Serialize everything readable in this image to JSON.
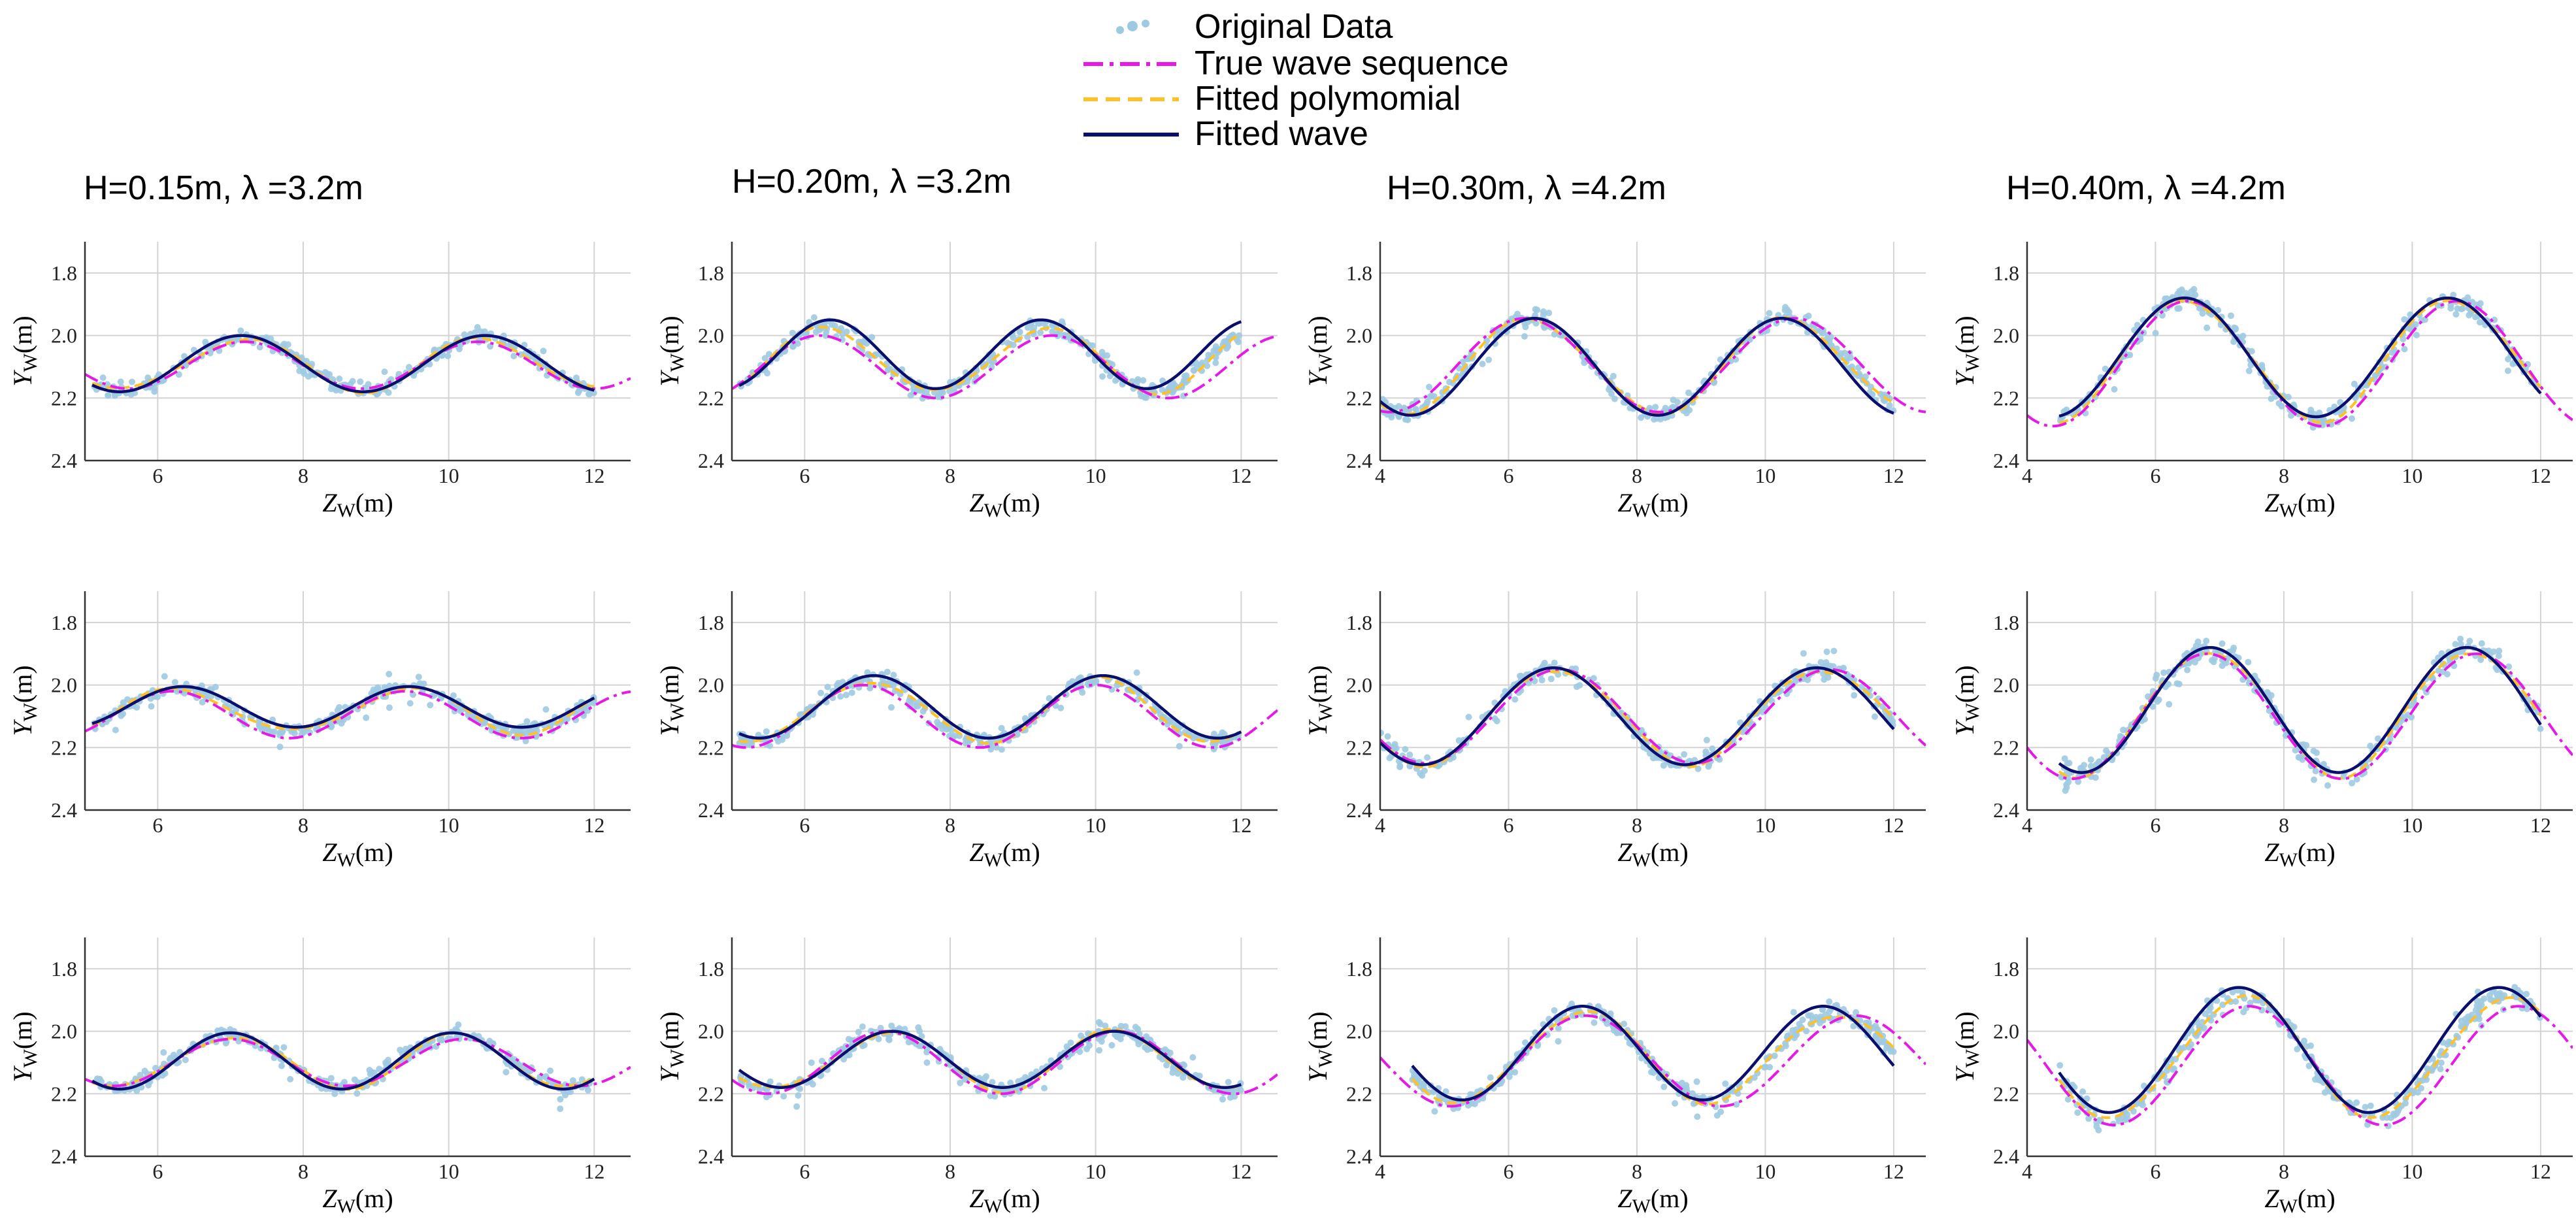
{
  "legend": {
    "entries": [
      {
        "label": "Original Data",
        "style": "scatter",
        "color": "#9ecae1"
      },
      {
        "label": "True wave sequence",
        "style": "dashdot",
        "color": "#e619e6"
      },
      {
        "label": "Fitted polymomial",
        "style": "dashed",
        "color": "#ffc125"
      },
      {
        "label": "Fitted wave",
        "style": "solid",
        "color": "#0a0f6e"
      }
    ]
  },
  "columns": [
    {
      "title": "H=0.15m, λ =3.2m"
    },
    {
      "title": "H=0.20m, λ =3.2m"
    },
    {
      "title": "H=0.30m, λ =4.2m"
    },
    {
      "title": "H=0.40m, λ =4.2m"
    }
  ],
  "axis_labels": {
    "x_main": "Z",
    "x_sub": "W",
    "x_unit": "(m)",
    "y_main": "Y",
    "y_sub": "W",
    "y_unit": "(m)"
  },
  "chart_data": {
    "type": "line",
    "layout": "3 rows x 4 columns grid",
    "grid": true,
    "y_inverted": true,
    "y_ticks": [
      "1.8",
      "2.0",
      "2.2",
      "2.4"
    ],
    "panels": [
      {
        "row": 0,
        "col": 0,
        "xlim": [
          5,
          12.5
        ],
        "ylim": [
          1.7,
          2.4
        ],
        "x_ticks": [
          "6",
          "8",
          "10",
          "12"
        ],
        "true_wave": {
          "mean": 2.095,
          "amp": 0.075,
          "wavelength": 3.2,
          "crest": 7.2,
          "xrange": [
            5,
            12.5
          ]
        },
        "fitted_wave": {
          "mean": 2.09,
          "amp": 0.09,
          "wavelength": 3.35,
          "crest": 7.15,
          "xrange": [
            5.1,
            12
          ]
        },
        "data_xrange": [
          5.1,
          12
        ],
        "noise": 0.025
      },
      {
        "row": 0,
        "col": 1,
        "xlim": [
          5,
          12.5
        ],
        "ylim": [
          1.7,
          2.4
        ],
        "x_ticks": [
          "6",
          "8",
          "10",
          "12"
        ],
        "true_wave": {
          "mean": 2.1,
          "amp": 0.1,
          "wavelength": 3.2,
          "crest": 6.2,
          "xrange": [
            5,
            12.5
          ]
        },
        "fitted_wave": {
          "mean": 2.06,
          "amp": 0.11,
          "wavelength": 2.9,
          "crest": 6.35,
          "xrange": [
            5.1,
            12
          ]
        },
        "data_xrange": [
          5.1,
          12
        ],
        "noise": 0.03
      },
      {
        "row": 0,
        "col": 2,
        "xlim": [
          4,
          12.5
        ],
        "ylim": [
          1.7,
          2.4
        ],
        "x_ticks": [
          "4",
          "6",
          "8",
          "10",
          "12"
        ],
        "true_wave": {
          "mean": 2.095,
          "amp": 0.15,
          "wavelength": 4.2,
          "crest": 6.25,
          "xrange": [
            4,
            12.5
          ]
        },
        "fitted_wave": {
          "mean": 2.1,
          "amp": 0.155,
          "wavelength": 3.85,
          "crest": 6.4,
          "xrange": [
            4,
            12
          ]
        },
        "data_xrange": [
          4,
          12
        ],
        "noise": 0.03
      },
      {
        "row": 0,
        "col": 3,
        "xlim": [
          4,
          12.5
        ],
        "ylim": [
          1.7,
          2.4
        ],
        "x_ticks": [
          "4",
          "6",
          "8",
          "10",
          "12"
        ],
        "true_wave": {
          "mean": 2.09,
          "amp": 0.2,
          "wavelength": 4.2,
          "crest": 6.5,
          "xrange": [
            4,
            12.5
          ]
        },
        "fitted_wave": {
          "mean": 2.07,
          "amp": 0.19,
          "wavelength": 4.1,
          "crest": 6.45,
          "xrange": [
            4.5,
            12
          ]
        },
        "data_xrange": [
          4.5,
          12
        ],
        "noise": 0.035
      },
      {
        "row": 1,
        "col": 0,
        "xlim": [
          5,
          12.5
        ],
        "ylim": [
          1.7,
          2.4
        ],
        "x_ticks": [
          "6",
          "8",
          "10",
          "12"
        ],
        "true_wave": {
          "mean": 2.095,
          "amp": 0.075,
          "wavelength": 3.2,
          "crest": 6.2,
          "xrange": [
            5,
            12.5
          ]
        },
        "fitted_wave": {
          "mean": 2.07,
          "amp": 0.065,
          "wavelength": 3.1,
          "crest": 6.35,
          "xrange": [
            5.1,
            12
          ]
        },
        "data_xrange": [
          5.1,
          12
        ],
        "noise": 0.025
      },
      {
        "row": 1,
        "col": 1,
        "xlim": [
          5,
          12.5
        ],
        "ylim": [
          1.7,
          2.4
        ],
        "x_ticks": [
          "6",
          "8",
          "10",
          "12"
        ],
        "true_wave": {
          "mean": 2.1,
          "amp": 0.1,
          "wavelength": 3.2,
          "crest": 6.8,
          "xrange": [
            5,
            12.5
          ]
        },
        "fitted_wave": {
          "mean": 2.07,
          "amp": 0.1,
          "wavelength": 3.15,
          "crest": 6.95,
          "xrange": [
            5.1,
            12
          ]
        },
        "data_xrange": [
          5.1,
          12
        ],
        "noise": 0.03
      },
      {
        "row": 1,
        "col": 2,
        "xlim": [
          4,
          12.5
        ],
        "ylim": [
          1.7,
          2.4
        ],
        "x_ticks": [
          "4",
          "6",
          "8",
          "10",
          "12"
        ],
        "true_wave": {
          "mean": 2.1,
          "amp": 0.15,
          "wavelength": 4.2,
          "crest": 6.8,
          "xrange": [
            4,
            12.5
          ]
        },
        "fitted_wave": {
          "mean": 2.1,
          "amp": 0.155,
          "wavelength": 4.1,
          "crest": 6.7,
          "xrange": [
            4,
            12
          ]
        },
        "data_xrange": [
          4,
          12
        ],
        "noise": 0.03
      },
      {
        "row": 1,
        "col": 3,
        "xlim": [
          4,
          12.5
        ],
        "ylim": [
          1.7,
          2.4
        ],
        "x_ticks": [
          "4",
          "6",
          "8",
          "10",
          "12"
        ],
        "true_wave": {
          "mean": 2.1,
          "amp": 0.2,
          "wavelength": 4.2,
          "crest": 6.8,
          "xrange": [
            4,
            12.5
          ]
        },
        "fitted_wave": {
          "mean": 2.08,
          "amp": 0.2,
          "wavelength": 4.0,
          "crest": 6.85,
          "xrange": [
            4.5,
            12
          ]
        },
        "data_xrange": [
          4.5,
          12
        ],
        "noise": 0.04
      },
      {
        "row": 2,
        "col": 0,
        "xlim": [
          5,
          12.5
        ],
        "ylim": [
          1.7,
          2.4
        ],
        "x_ticks": [
          "6",
          "8",
          "10",
          "12"
        ],
        "true_wave": {
          "mean": 2.1,
          "amp": 0.075,
          "wavelength": 3.2,
          "crest": 7.0,
          "xrange": [
            5,
            12.5
          ]
        },
        "fitted_wave": {
          "mean": 2.095,
          "amp": 0.09,
          "wavelength": 3.05,
          "crest": 7.0,
          "xrange": [
            5.1,
            12
          ]
        },
        "data_xrange": [
          5.1,
          12
        ],
        "noise": 0.025
      },
      {
        "row": 2,
        "col": 1,
        "xlim": [
          5,
          12.5
        ],
        "ylim": [
          1.7,
          2.4
        ],
        "x_ticks": [
          "6",
          "8",
          "10",
          "12"
        ],
        "true_wave": {
          "mean": 2.1,
          "amp": 0.1,
          "wavelength": 3.2,
          "crest": 7.1,
          "xrange": [
            5,
            12.5
          ]
        },
        "fitted_wave": {
          "mean": 2.09,
          "amp": 0.09,
          "wavelength": 3.05,
          "crest": 7.2,
          "xrange": [
            5.1,
            12
          ]
        },
        "data_xrange": [
          5.1,
          12
        ],
        "noise": 0.03
      },
      {
        "row": 2,
        "col": 2,
        "xlim": [
          4,
          12.5
        ],
        "ylim": [
          1.7,
          2.4
        ],
        "x_ticks": [
          "4",
          "6",
          "8",
          "10",
          "12"
        ],
        "true_wave": {
          "mean": 2.095,
          "amp": 0.145,
          "wavelength": 4.2,
          "crest": 7.2,
          "xrange": [
            4,
            12.5
          ]
        },
        "fitted_wave": {
          "mean": 2.07,
          "amp": 0.15,
          "wavelength": 3.75,
          "crest": 7.15,
          "xrange": [
            4.5,
            12
          ]
        },
        "data_xrange": [
          4.5,
          12
        ],
        "noise": 0.03
      },
      {
        "row": 2,
        "col": 3,
        "xlim": [
          4,
          12.5
        ],
        "ylim": [
          1.7,
          2.4
        ],
        "x_ticks": [
          "4",
          "6",
          "8",
          "10",
          "12"
        ],
        "true_wave": {
          "mean": 2.11,
          "amp": 0.19,
          "wavelength": 4.2,
          "crest": 7.45,
          "xrange": [
            4,
            12.5
          ]
        },
        "fitted_wave": {
          "mean": 2.06,
          "amp": 0.2,
          "wavelength": 4.05,
          "crest": 7.3,
          "xrange": [
            4.5,
            12
          ]
        },
        "data_xrange": [
          4.5,
          12
        ],
        "noise": 0.04
      }
    ]
  }
}
